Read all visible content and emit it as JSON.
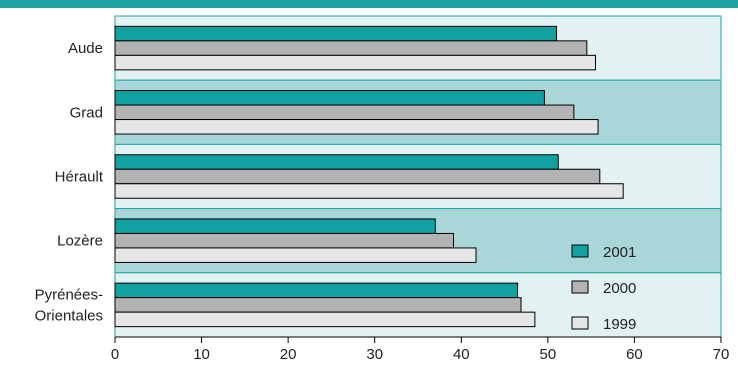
{
  "colors": {
    "top_band": "#1ea4a4",
    "band_light": "#e2f1f1",
    "band_dark": "#a9d7d9",
    "band_border": "#1ea4a4",
    "series_2001": "#12a1a1",
    "series_2000": "#b3b3b3",
    "series_1999": "#e6e6e6",
    "bar_stroke": "#000000"
  },
  "chart_data": {
    "type": "bar",
    "orientation": "horizontal",
    "categories": [
      "Aude",
      "Grad",
      "Hérault",
      "Lozère",
      "Pyrénées-Orientales"
    ],
    "category_labels": [
      [
        "Aude"
      ],
      [
        "Grad"
      ],
      [
        "Hérault"
      ],
      [
        "Lozère"
      ],
      [
        "Pyrénées-",
        "Orientales"
      ]
    ],
    "series": [
      {
        "name": "2001",
        "values": [
          51.0,
          49.6,
          51.2,
          37.0,
          46.5
        ]
      },
      {
        "name": "2000",
        "values": [
          54.5,
          53.0,
          56.0,
          39.1,
          46.9
        ]
      },
      {
        "name": "1999",
        "values": [
          55.5,
          55.8,
          58.7,
          41.7,
          48.5
        ]
      }
    ],
    "xlim": [
      0,
      70
    ],
    "xticks": [
      0,
      10,
      20,
      30,
      40,
      50,
      60,
      70
    ],
    "title": "",
    "xlabel": "",
    "ylabel": "",
    "grid": false,
    "legend_position": "bottom-right",
    "band_shading": [
      "light",
      "dark",
      "light",
      "dark",
      "light"
    ]
  }
}
